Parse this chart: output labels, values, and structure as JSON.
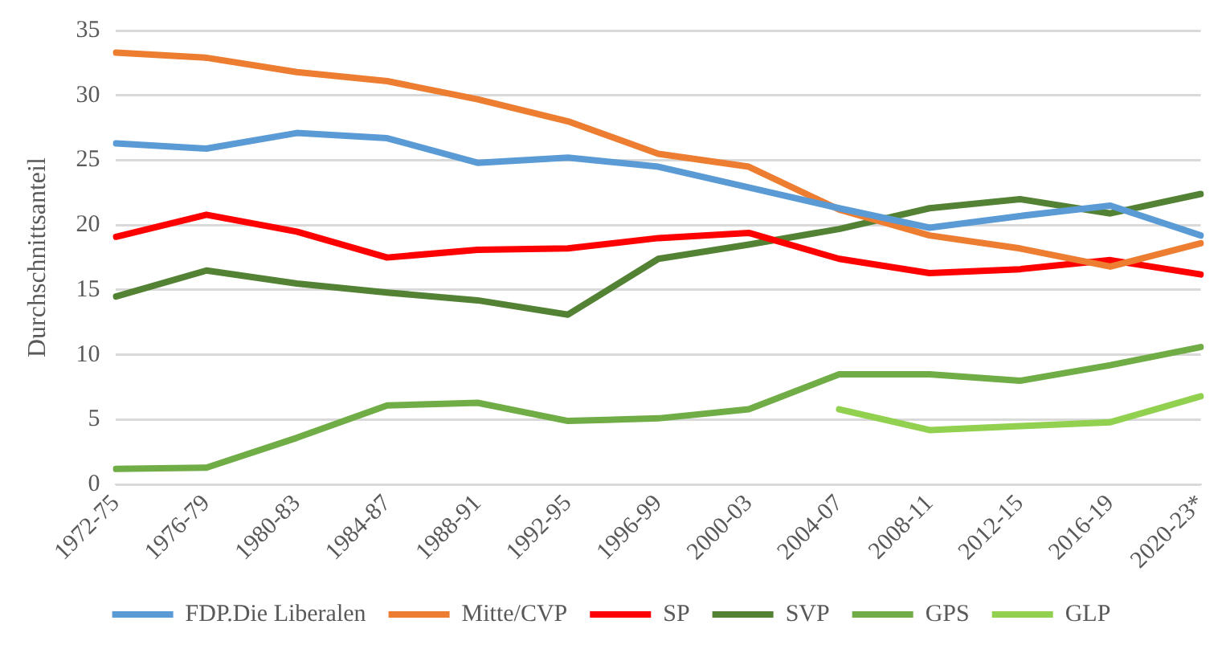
{
  "chart_data": {
    "type": "line",
    "ylabel": "Durchschnittsanteil",
    "categories": [
      "1972-75",
      "1976-79",
      "1980-83",
      "1984-87",
      "1988-91",
      "1992-95",
      "1996-99",
      "2000-03",
      "2004-07",
      "2008-11",
      "2012-15",
      "2016-19",
      "2020-23*"
    ],
    "series": [
      {
        "name": "FDP.Die Liberalen",
        "color": "#5b9bd5",
        "values": [
          26.3,
          25.9,
          27.1,
          26.7,
          24.8,
          25.2,
          24.5,
          22.9,
          21.3,
          19.8,
          20.7,
          21.5,
          19.2
        ]
      },
      {
        "name": "Mitte/CVP",
        "color": "#ed7d31",
        "values": [
          33.3,
          32.9,
          31.8,
          31.1,
          29.7,
          28.0,
          25.5,
          24.5,
          21.2,
          19.2,
          18.2,
          16.8,
          18.6
        ]
      },
      {
        "name": "SP",
        "color": "#ff0000",
        "values": [
          19.1,
          20.8,
          19.5,
          17.5,
          18.1,
          18.2,
          19.0,
          19.4,
          17.4,
          16.3,
          16.6,
          17.3,
          16.2
        ]
      },
      {
        "name": "SVP",
        "color": "#548235",
        "values": [
          14.5,
          16.5,
          15.5,
          14.8,
          14.2,
          13.1,
          17.4,
          18.5,
          19.7,
          21.3,
          22.0,
          20.9,
          22.4
        ]
      },
      {
        "name": "GPS",
        "color": "#70ad47",
        "values": [
          1.2,
          1.3,
          3.6,
          6.1,
          6.3,
          4.9,
          5.1,
          5.8,
          8.5,
          8.5,
          8.0,
          9.2,
          10.6
        ]
      },
      {
        "name": "GLP",
        "color": "#92d050",
        "values": [
          null,
          null,
          null,
          null,
          null,
          null,
          null,
          null,
          5.8,
          4.2,
          4.5,
          4.8,
          6.8
        ]
      }
    ],
    "ylim": [
      0,
      35
    ],
    "yticks": [
      0,
      5,
      10,
      15,
      20,
      25,
      30,
      35
    ],
    "grid": "y",
    "legend": "bottom",
    "marker": "none",
    "line_style": "solid"
  }
}
